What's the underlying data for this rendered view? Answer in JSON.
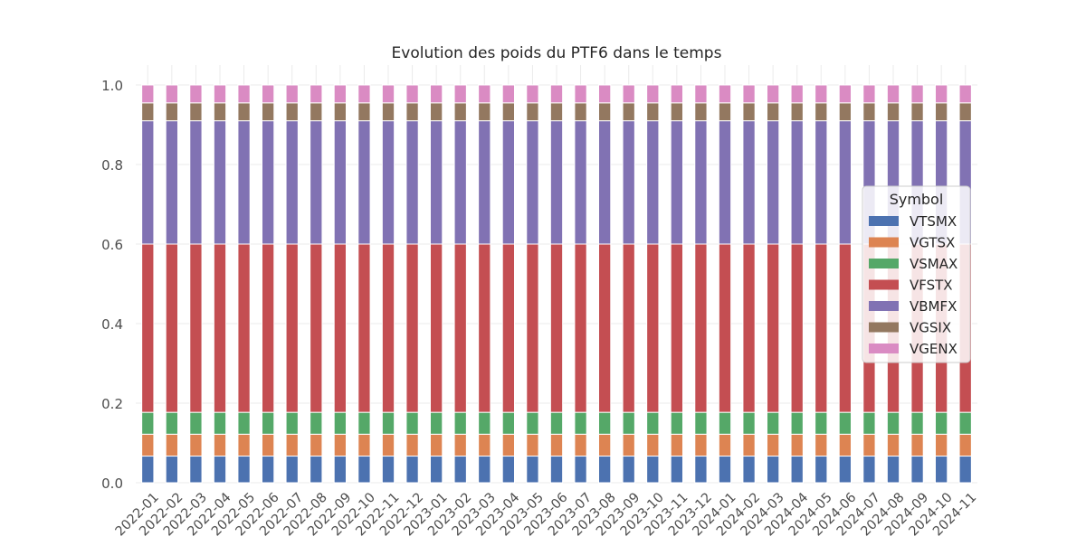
{
  "chart_data": {
    "type": "bar",
    "stacked": true,
    "title": "Evolution des poids du PTF6 dans le temps",
    "xlabel": "",
    "ylabel": "",
    "ylim": [
      0,
      1.0
    ],
    "yticks": [
      "0.0",
      "0.2",
      "0.4",
      "0.6",
      "0.8",
      "1.0"
    ],
    "grid": true,
    "categories": [
      "2022-01",
      "2022-02",
      "2022-03",
      "2022-04",
      "2022-05",
      "2022-06",
      "2022-07",
      "2022-08",
      "2022-09",
      "2022-10",
      "2022-11",
      "2022-12",
      "2023-01",
      "2023-02",
      "2023-03",
      "2023-04",
      "2023-05",
      "2023-06",
      "2023-07",
      "2023-08",
      "2023-09",
      "2023-10",
      "2023-11",
      "2023-12",
      "2024-01",
      "2024-02",
      "2024-03",
      "2024-04",
      "2024-05",
      "2024-06",
      "2024-07",
      "2024-08",
      "2024-09",
      "2024-10",
      "2024-11"
    ],
    "legend": {
      "title": "Symbol",
      "placement": "right"
    },
    "series": [
      {
        "name": "VTSMX",
        "color": "#4c72b0",
        "values": [
          0.067,
          0.067,
          0.067,
          0.067,
          0.067,
          0.067,
          0.067,
          0.067,
          0.067,
          0.067,
          0.067,
          0.067,
          0.067,
          0.067,
          0.067,
          0.067,
          0.067,
          0.067,
          0.067,
          0.067,
          0.067,
          0.067,
          0.067,
          0.067,
          0.067,
          0.067,
          0.067,
          0.067,
          0.067,
          0.067,
          0.067,
          0.067,
          0.067,
          0.067,
          0.067
        ]
      },
      {
        "name": "VGTSX",
        "color": "#dd8452",
        "values": [
          0.055,
          0.055,
          0.055,
          0.055,
          0.055,
          0.055,
          0.055,
          0.055,
          0.055,
          0.055,
          0.055,
          0.055,
          0.055,
          0.055,
          0.055,
          0.055,
          0.055,
          0.055,
          0.055,
          0.055,
          0.055,
          0.055,
          0.055,
          0.055,
          0.055,
          0.055,
          0.055,
          0.055,
          0.055,
          0.055,
          0.055,
          0.055,
          0.055,
          0.055,
          0.055
        ]
      },
      {
        "name": "VSMAX",
        "color": "#55a868",
        "values": [
          0.055,
          0.055,
          0.055,
          0.055,
          0.055,
          0.055,
          0.055,
          0.055,
          0.055,
          0.055,
          0.055,
          0.055,
          0.055,
          0.055,
          0.055,
          0.055,
          0.055,
          0.055,
          0.055,
          0.055,
          0.055,
          0.055,
          0.055,
          0.055,
          0.055,
          0.055,
          0.055,
          0.055,
          0.055,
          0.055,
          0.055,
          0.055,
          0.055,
          0.055,
          0.055
        ]
      },
      {
        "name": "VFSTX",
        "color": "#c44e52",
        "values": [
          0.423,
          0.423,
          0.423,
          0.423,
          0.423,
          0.423,
          0.423,
          0.423,
          0.423,
          0.423,
          0.423,
          0.423,
          0.423,
          0.423,
          0.423,
          0.423,
          0.423,
          0.423,
          0.423,
          0.423,
          0.423,
          0.423,
          0.423,
          0.423,
          0.423,
          0.423,
          0.423,
          0.423,
          0.423,
          0.423,
          0.423,
          0.423,
          0.423,
          0.423,
          0.423
        ]
      },
      {
        "name": "VBMFX",
        "color": "#8172b3",
        "values": [
          0.31,
          0.31,
          0.31,
          0.31,
          0.31,
          0.31,
          0.31,
          0.31,
          0.31,
          0.31,
          0.31,
          0.31,
          0.31,
          0.31,
          0.31,
          0.31,
          0.31,
          0.31,
          0.31,
          0.31,
          0.31,
          0.31,
          0.31,
          0.31,
          0.31,
          0.31,
          0.31,
          0.31,
          0.31,
          0.31,
          0.31,
          0.31,
          0.31,
          0.31,
          0.31
        ]
      },
      {
        "name": "VGSIX",
        "color": "#937860",
        "values": [
          0.045,
          0.045,
          0.045,
          0.045,
          0.045,
          0.045,
          0.045,
          0.045,
          0.045,
          0.045,
          0.045,
          0.045,
          0.045,
          0.045,
          0.045,
          0.045,
          0.045,
          0.045,
          0.045,
          0.045,
          0.045,
          0.045,
          0.045,
          0.045,
          0.045,
          0.045,
          0.045,
          0.045,
          0.045,
          0.045,
          0.045,
          0.045,
          0.045,
          0.045,
          0.045
        ]
      },
      {
        "name": "VGENX",
        "color": "#da8bc3",
        "values": [
          0.045,
          0.045,
          0.045,
          0.045,
          0.045,
          0.045,
          0.045,
          0.045,
          0.045,
          0.045,
          0.045,
          0.045,
          0.045,
          0.045,
          0.045,
          0.045,
          0.045,
          0.045,
          0.045,
          0.045,
          0.045,
          0.045,
          0.045,
          0.045,
          0.045,
          0.045,
          0.045,
          0.045,
          0.045,
          0.045,
          0.045,
          0.045,
          0.045,
          0.045,
          0.045
        ]
      }
    ]
  }
}
